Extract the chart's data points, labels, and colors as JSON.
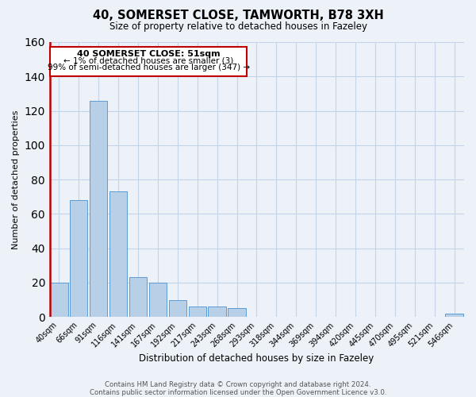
{
  "title": "40, SOMERSET CLOSE, TAMWORTH, B78 3XH",
  "subtitle": "Size of property relative to detached houses in Fazeley",
  "xlabel": "Distribution of detached houses by size in Fazeley",
  "ylabel": "Number of detached properties",
  "bar_values": [
    20,
    68,
    126,
    73,
    23,
    20,
    10,
    6,
    6,
    5,
    0,
    0,
    0,
    0,
    0,
    0,
    0,
    0,
    0,
    0,
    2
  ],
  "bin_labels": [
    "40sqm",
    "66sqm",
    "91sqm",
    "116sqm",
    "141sqm",
    "167sqm",
    "192sqm",
    "217sqm",
    "243sqm",
    "268sqm",
    "293sqm",
    "318sqm",
    "344sqm",
    "369sqm",
    "394sqm",
    "420sqm",
    "445sqm",
    "470sqm",
    "495sqm",
    "521sqm",
    "546sqm"
  ],
  "ylim": [
    0,
    160
  ],
  "yticks": [
    0,
    20,
    40,
    60,
    80,
    100,
    120,
    140,
    160
  ],
  "bar_color": "#b8cfe8",
  "bar_edge_color": "#5b9bd5",
  "highlight_color": "#c00000",
  "annotation_title": "40 SOMERSET CLOSE: 51sqm",
  "annotation_line1": "← 1% of detached houses are smaller (3)",
  "annotation_line2": "99% of semi-detached houses are larger (347) →",
  "annotation_box_color": "#ffffff",
  "annotation_box_edge": "#c00000",
  "footer1": "Contains HM Land Registry data © Crown copyright and database right 2024.",
  "footer2": "Contains public sector information licensed under the Open Government Licence v3.0.",
  "bg_color": "#edf2f9",
  "grid_color": "#c5d3e8"
}
